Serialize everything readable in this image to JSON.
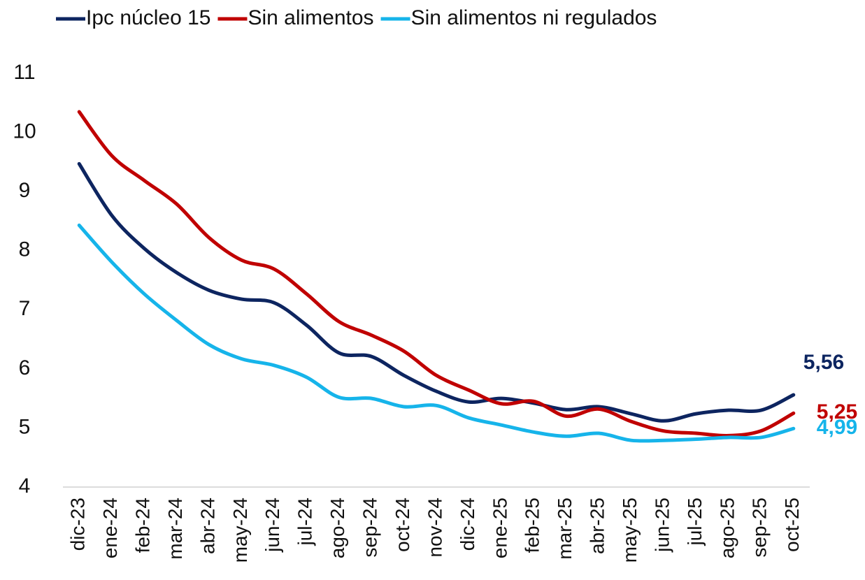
{
  "chart_data": {
    "type": "line",
    "categories": [
      "dic-23",
      "ene-24",
      "feb-24",
      "mar-24",
      "abr-24",
      "may-24",
      "jun-24",
      "jul-24",
      "ago-24",
      "sep-24",
      "oct-24",
      "nov-24",
      "dic-24",
      "ene-25",
      "feb-25",
      "mar-25",
      "abr-25",
      "may-25",
      "jun-25",
      "jul-25",
      "ago-25",
      "sep-25",
      "oct-25"
    ],
    "series": [
      {
        "name": "Ipc núcleo 15",
        "color": "#0d2560",
        "values": [
          9.47,
          8.6,
          8.04,
          7.63,
          7.33,
          7.18,
          7.12,
          6.74,
          6.27,
          6.21,
          5.89,
          5.62,
          5.44,
          5.5,
          5.42,
          5.31,
          5.36,
          5.24,
          5.12,
          5.24,
          5.3,
          5.3,
          5.56
        ],
        "value_labels": [
          null,
          null,
          null,
          null,
          null,
          null,
          null,
          null,
          null,
          null,
          null,
          null,
          null,
          null,
          null,
          null,
          null,
          null,
          null,
          null,
          null,
          null,
          "5,56"
        ]
      },
      {
        "name": "Sin alimentos",
        "color": "#c00000",
        "values": [
          10.35,
          9.61,
          9.19,
          8.79,
          8.22,
          7.84,
          7.69,
          7.27,
          6.8,
          6.57,
          6.3,
          5.89,
          5.64,
          5.41,
          5.45,
          5.2,
          5.32,
          5.11,
          4.95,
          4.91,
          4.87,
          4.95,
          5.25
        ],
        "value_labels": [
          null,
          null,
          null,
          null,
          null,
          null,
          null,
          null,
          null,
          null,
          null,
          null,
          null,
          null,
          null,
          null,
          null,
          null,
          null,
          null,
          null,
          null,
          "5,25"
        ]
      },
      {
        "name": "Sin alimentos ni regulados",
        "color": "#16b4ea",
        "values": [
          8.43,
          7.81,
          7.27,
          6.82,
          6.41,
          6.17,
          6.06,
          5.86,
          5.52,
          5.5,
          5.36,
          5.38,
          5.17,
          5.05,
          4.93,
          4.86,
          4.91,
          4.79,
          4.79,
          4.81,
          4.84,
          4.84,
          4.99
        ],
        "value_labels": [
          null,
          null,
          null,
          null,
          null,
          null,
          null,
          null,
          null,
          null,
          null,
          null,
          null,
          null,
          null,
          null,
          null,
          null,
          null,
          null,
          null,
          null,
          "4,99"
        ]
      }
    ],
    "ylim": [
      4,
      11
    ],
    "yticks": [
      4,
      5,
      6,
      7,
      8,
      9,
      10,
      11
    ],
    "grid": false,
    "legend": "top"
  }
}
